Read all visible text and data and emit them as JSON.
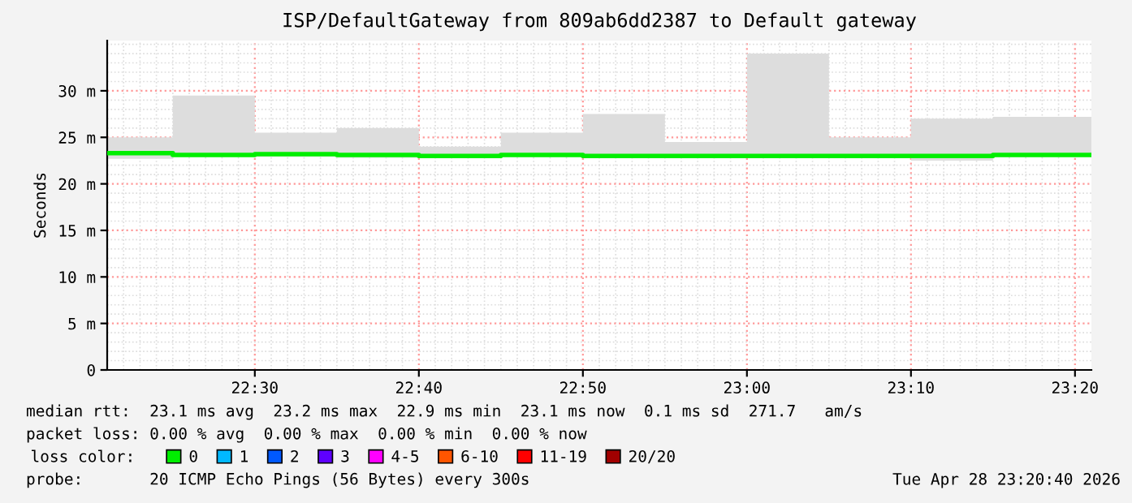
{
  "chart_data": {
    "type": "step",
    "title": "ISP/DefaultGateway from 809ab6dd2387 to Default gateway",
    "ylabel": "Seconds",
    "legend_title": "loss color:",
    "legend": "bottom",
    "grid": true,
    "x": [
      "2026-04-28T22:21",
      "2026-04-28T22:25",
      "2026-04-28T22:30",
      "2026-04-28T22:35",
      "2026-04-28T22:40",
      "2026-04-28T22:45",
      "2026-04-28T22:50",
      "2026-04-28T22:55",
      "2026-04-28T23:00",
      "2026-04-28T23:05",
      "2026-04-28T23:10",
      "2026-04-28T23:15",
      "2026-04-28T23:21"
    ],
    "xlim": [
      "2026-04-28T22:21",
      "2026-04-28T23:21"
    ],
    "xticks": [
      {
        "value": "2026-04-28T22:30",
        "label": "22:30"
      },
      {
        "value": "2026-04-28T22:40",
        "label": "22:40"
      },
      {
        "value": "2026-04-28T22:50",
        "label": "22:50"
      },
      {
        "value": "2026-04-28T23:00",
        "label": "23:00"
      },
      {
        "value": "2026-04-28T23:10",
        "label": "23:10"
      },
      {
        "value": "2026-04-28T23:20",
        "label": "23:20"
      }
    ],
    "ylim": [
      0,
      35.4
    ],
    "yticks": [
      {
        "value": 0,
        "label": "0"
      },
      {
        "value": 5,
        "label": "5 m"
      },
      {
        "value": 10,
        "label": "10 m"
      },
      {
        "value": 15,
        "label": "15 m"
      },
      {
        "value": 20,
        "label": "20 m"
      },
      {
        "value": 25,
        "label": "25 m"
      },
      {
        "value": 30,
        "label": "30 m"
      }
    ],
    "series": [
      {
        "name": "0",
        "color": "#00ee00",
        "values": [
          23.3,
          23.1,
          23.2,
          23.1,
          23.0,
          23.1,
          23.0,
          23.0,
          23.0,
          23.0,
          23.0,
          23.1,
          23.1
        ],
        "lower": [
          22.7,
          22.9,
          22.9,
          22.8,
          22.9,
          22.9,
          22.9,
          22.9,
          22.9,
          22.9,
          22.5,
          22.9,
          22.9
        ],
        "upper": [
          25.0,
          29.5,
          25.5,
          26.0,
          24.0,
          25.5,
          27.5,
          24.5,
          34.0,
          25.0,
          27.0,
          27.2,
          27.2
        ]
      },
      {
        "name": "1",
        "color": "#00b8ff",
        "values": [
          null,
          null,
          null,
          null,
          null,
          null,
          null,
          null,
          null,
          null,
          null,
          null,
          null
        ]
      },
      {
        "name": "2",
        "color": "#0059ff",
        "values": [
          null,
          null,
          null,
          null,
          null,
          null,
          null,
          null,
          null,
          null,
          null,
          null,
          null
        ]
      },
      {
        "name": "3",
        "color": "#5e00ff",
        "values": [
          null,
          null,
          null,
          null,
          null,
          null,
          null,
          null,
          null,
          null,
          null,
          null,
          null
        ]
      },
      {
        "name": "4-5",
        "color": "#ff00ff",
        "values": [
          null,
          null,
          null,
          null,
          null,
          null,
          null,
          null,
          null,
          null,
          null,
          null,
          null
        ]
      },
      {
        "name": "6-10",
        "color": "#ff5500",
        "values": [
          null,
          null,
          null,
          null,
          null,
          null,
          null,
          null,
          null,
          null,
          null,
          null,
          null
        ]
      },
      {
        "name": "11-19",
        "color": "#ff0000",
        "values": [
          null,
          null,
          null,
          null,
          null,
          null,
          null,
          null,
          null,
          null,
          null,
          null,
          null
        ]
      },
      {
        "name": "20/20",
        "color": "#a10000",
        "values": [
          null,
          null,
          null,
          null,
          null,
          null,
          null,
          null,
          null,
          null,
          null,
          null,
          null
        ]
      }
    ],
    "annotations": [
      "median rtt:  23.1 ms avg  23.2 ms max  22.9 ms min  23.1 ms now  0.1 ms sd  271.7   am/s",
      "packet loss: 0.00 % avg  0.00 % max  0.00 % min  0.00 % now",
      "probe:       20 ICMP Echo Pings (56 Bytes) every 300s",
      "Tue Apr 28 23:20:40 2026"
    ]
  }
}
